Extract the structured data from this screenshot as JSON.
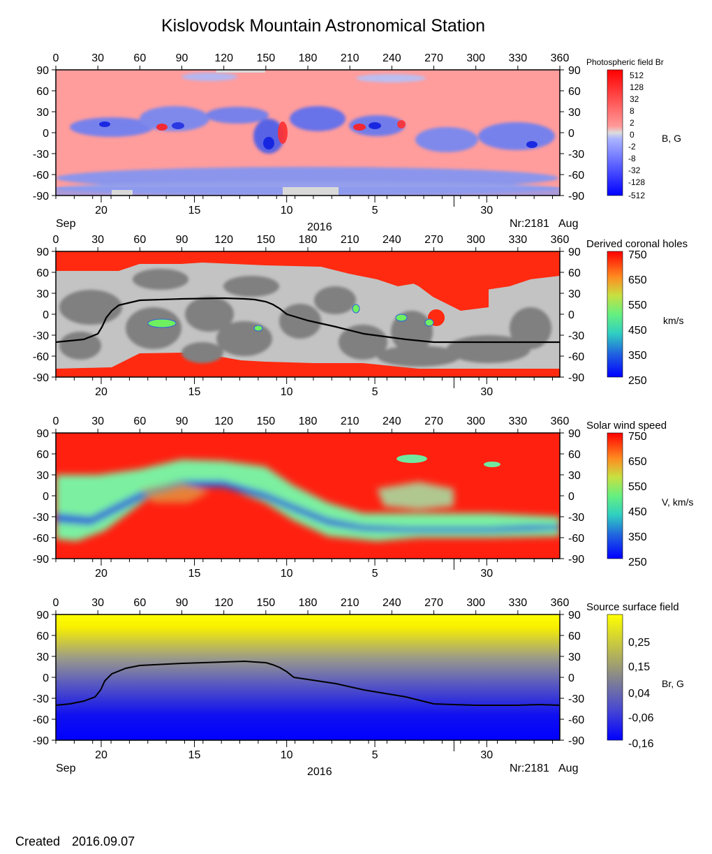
{
  "title": "Kislovodsk Mountain Astronomical Station",
  "footer": {
    "created_label": "Created",
    "created_date": "2016.09.07"
  },
  "axes": {
    "longitude_ticks": [
      "0",
      "30",
      "60",
      "90",
      "120",
      "150",
      "180",
      "210",
      "240",
      "270",
      "300",
      "330",
      "360"
    ],
    "latitude_ticks": [
      "90",
      "60",
      "30",
      "0",
      "-30",
      "-60",
      "-90"
    ],
    "date_ticks": [
      "20",
      "15",
      "10",
      "5",
      "30"
    ],
    "month_left": "Sep",
    "year": "2016",
    "rotation": "Nr:2181",
    "month_right": "Aug"
  },
  "panels": [
    {
      "id": "photospheric",
      "colorbar_title": "Photospheric field Br",
      "unit_label": "B, G",
      "colorbar_ticks": [
        "512",
        "128",
        "32",
        "8",
        "2",
        "0",
        "-2",
        "-8",
        "-32",
        "-128",
        "-512"
      ],
      "colors": {
        "positive": "#ff8a8a",
        "negative": "#6f82f2",
        "zero": "#d9d9d9",
        "max": "#ff0000",
        "min": "#0000ff"
      }
    },
    {
      "id": "coronal-holes",
      "colorbar_title": "Derived coronal holes",
      "unit_label": "km/s",
      "colorbar_ticks": [
        "750",
        "650",
        "550",
        "450",
        "350",
        "250"
      ],
      "colors": {
        "fast": "#ff2a10",
        "closed_light": "#c8c8c8",
        "closed_dark": "#808080",
        "neutral_line": "#000000"
      }
    },
    {
      "id": "solar-wind",
      "colorbar_title": "Solar wind speed",
      "unit_label": "V, km/s",
      "colorbar_ticks": [
        "750",
        "650",
        "550",
        "450",
        "350",
        "250"
      ],
      "colors": {
        "fast": "#ff2a10",
        "mid": "#66f0a0",
        "slow": "#2a6ad6"
      }
    },
    {
      "id": "source-surface",
      "colorbar_title": "Source surface field",
      "unit_label": "Br, G",
      "colorbar_ticks": [
        "0,25",
        "0,15",
        "0,04",
        "-0,06",
        "-0,16"
      ],
      "colors": {
        "top": "#ffff00",
        "mid": "#8a8a95",
        "bottom": "#0000ff",
        "neutral_line": "#000000"
      }
    }
  ],
  "chart_data": [
    {
      "type": "heatmap",
      "title": "Photospheric field Br",
      "xlabel": "",
      "ylabel": "",
      "xlim": [
        0,
        360
      ],
      "ylim": [
        -90,
        90
      ],
      "colorbar_label": "B, G",
      "colorbar_range": [
        -512,
        512
      ],
      "colorbar_ticks": [
        512,
        128,
        32,
        8,
        2,
        0,
        -2,
        -8,
        -32,
        -128,
        -512
      ]
    },
    {
      "type": "heatmap",
      "title": "Derived coronal holes",
      "xlim": [
        0,
        360
      ],
      "ylim": [
        -90,
        90
      ],
      "colorbar_label": "km/s",
      "colorbar_range": [
        250,
        750
      ],
      "colorbar_ticks": [
        750,
        650,
        550,
        450,
        350,
        250
      ],
      "neutral_line": {
        "x": [
          0,
          20,
          30,
          33,
          36,
          40,
          45,
          60,
          90,
          120,
          135,
          142,
          150,
          155,
          160,
          165,
          170,
          180,
          200,
          220,
          250,
          270,
          300,
          330,
          345,
          360
        ],
        "y": [
          -40,
          -36,
          -28,
          -18,
          -5,
          5,
          13,
          20,
          22,
          23,
          22,
          21,
          18,
          14,
          8,
          0,
          -3,
          -9,
          -18,
          -28,
          -36,
          -40,
          -40,
          -40,
          -40,
          -40
        ]
      }
    },
    {
      "type": "heatmap",
      "title": "Solar wind speed",
      "xlim": [
        0,
        360
      ],
      "ylim": [
        -90,
        90
      ],
      "colorbar_label": "V, km/s",
      "colorbar_range": [
        250,
        750
      ],
      "colorbar_ticks": [
        750,
        650,
        550,
        450,
        350,
        250
      ]
    },
    {
      "type": "heatmap",
      "title": "Source surface field",
      "xlim": [
        0,
        360
      ],
      "ylim": [
        -90,
        90
      ],
      "colorbar_label": "Br, G",
      "colorbar_range": [
        -0.16,
        0.25
      ],
      "colorbar_ticks": [
        0.25,
        0.15,
        0.04,
        -0.06,
        -0.16
      ],
      "neutral_line": {
        "x": [
          0,
          10,
          20,
          28,
          32,
          35,
          40,
          50,
          60,
          90,
          120,
          135,
          142,
          150,
          155,
          160,
          165,
          170,
          180,
          200,
          220,
          250,
          270,
          300,
          330,
          345,
          360
        ],
        "y": [
          -40,
          -38,
          -34,
          -28,
          -18,
          -5,
          5,
          13,
          17,
          20,
          22,
          23,
          22,
          21,
          18,
          14,
          8,
          0,
          -3,
          -9,
          -18,
          -28,
          -38,
          -40,
          -40,
          -39,
          -40
        ]
      }
    }
  ]
}
